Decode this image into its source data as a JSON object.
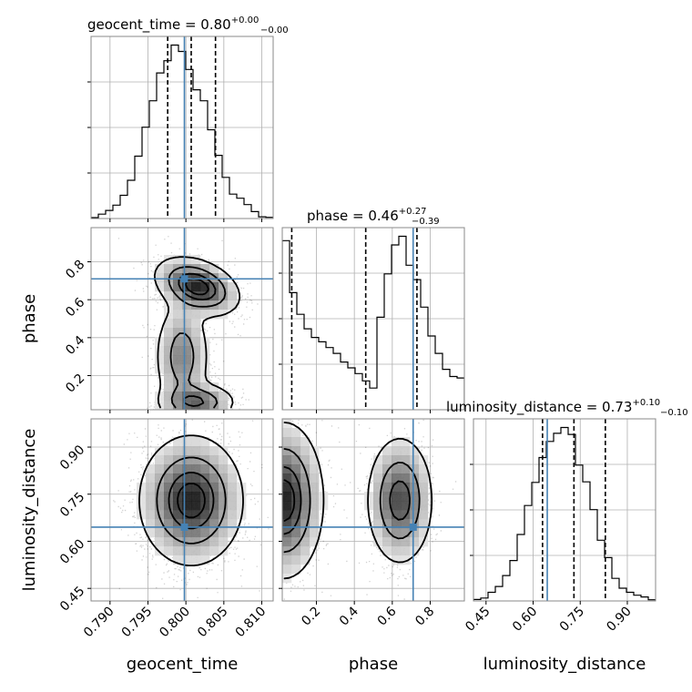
{
  "chart_data": {
    "type": "corner",
    "parameters": [
      "geocent_time",
      "phase",
      "luminosity_distance"
    ],
    "axis_labels": [
      "geocent_time",
      "phase",
      "luminosity_distance"
    ],
    "ranges": [
      [
        0.7875,
        0.8115
      ],
      [
        0.02,
        0.98
      ],
      [
        0.41,
        0.99
      ]
    ],
    "ticks": [
      {
        "values": [
          0.79,
          0.795,
          0.8,
          0.805,
          0.81
        ],
        "labels": [
          "0.790",
          "0.795",
          "0.800",
          "0.805",
          "0.810"
        ]
      },
      {
        "values": [
          0.2,
          0.4,
          0.6,
          0.8
        ],
        "labels": [
          "0.2",
          "0.4",
          "0.6",
          "0.8"
        ]
      },
      {
        "values": [
          0.45,
          0.6,
          0.75,
          0.9
        ],
        "labels": [
          "0.45",
          "0.60",
          "0.75",
          "0.90"
        ]
      }
    ],
    "titles": [
      {
        "prefix": "geocent_time = 0.80",
        "plus": "+0.00",
        "minus": "−0.00"
      },
      {
        "prefix": "phase = 0.46",
        "plus": "+0.27",
        "minus": "−0.39"
      },
      {
        "prefix": "luminosity_distance = 0.73",
        "plus": "+0.10",
        "minus": "−0.10"
      }
    ],
    "truths": [
      0.7998,
      0.71,
      0.645
    ],
    "truth_color": "#4682b4",
    "quantiles": [
      [
        0.7976,
        0.8007,
        0.8039
      ],
      [
        0.07,
        0.46,
        0.73
      ],
      [
        0.63,
        0.73,
        0.83
      ]
    ],
    "histograms_1d": [
      [
        0.3,
        1.5,
        2.8,
        4.6,
        8.0,
        13.2,
        21.5,
        31.5,
        40.6,
        50.2,
        54.4,
        59.8,
        57.6,
        51.4,
        44.4,
        40.6,
        30.6,
        21.8,
        14.2,
        8.4,
        7.0,
        4.8,
        2.4,
        0.6,
        0.4
      ],
      [
        117,
        81,
        66,
        56,
        50,
        47,
        43,
        39,
        33,
        29,
        25,
        20,
        15,
        64,
        94,
        114,
        120,
        100,
        90,
        71,
        51,
        39,
        28,
        23,
        22
      ],
      [
        0.5,
        1.0,
        3.0,
        5.0,
        8.8,
        14.0,
        23.0,
        33.0,
        41.0,
        49.6,
        55.2,
        58.0,
        60.0,
        57.6,
        47.0,
        41.2,
        31.6,
        21.0,
        15.0,
        7.8,
        4.4,
        3.0,
        2.0,
        1.4,
        0.4
      ]
    ],
    "density_2d": {
      "phase_vs_geocent_time": {
        "components": [
          {
            "weight": 0.45,
            "mean": [
              0.8015,
              0.67
            ],
            "sd": [
              0.0027,
              0.075
            ],
            "rho": -0.35
          },
          {
            "weight": 0.25,
            "mean": [
              0.7995,
              0.3
            ],
            "sd": [
              0.0018,
              0.15
            ],
            "rho": 0.0
          },
          {
            "weight": 0.3,
            "mean": [
              0.8015,
              0.06
            ],
            "sd": [
              0.0025,
              0.05
            ],
            "rho": 0.0
          }
        ]
      },
      "luminosity_distance_vs_geocent_time": {
        "components": [
          {
            "weight": 1.0,
            "mean": [
              0.8007,
              0.73
            ],
            "sd": [
              0.0033,
              0.1
            ],
            "rho": 0.0
          }
        ]
      },
      "luminosity_distance_vs_phase": {
        "components": [
          {
            "weight": 0.55,
            "mean": [
              0.03,
              0.73
            ],
            "sd": [
              0.1,
              0.12
            ],
            "rho": 0.0
          },
          {
            "weight": 0.45,
            "mean": [
              0.64,
              0.73
            ],
            "sd": [
              0.085,
              0.1
            ],
            "rho": 0.0
          }
        ]
      }
    },
    "contour_levels": [
      0.118,
      0.393,
      0.675,
      0.865
    ],
    "histogram_color": "#000000",
    "grid": true
  }
}
